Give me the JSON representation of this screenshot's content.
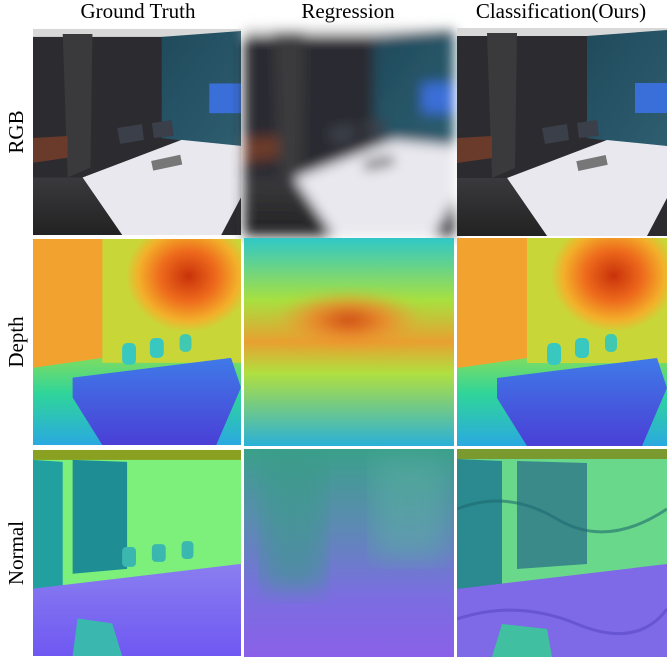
{
  "columns": [
    "Ground Truth",
    "Regression",
    "Classification(Ours)"
  ],
  "rows": [
    "RGB",
    "Depth",
    "Normal"
  ]
}
